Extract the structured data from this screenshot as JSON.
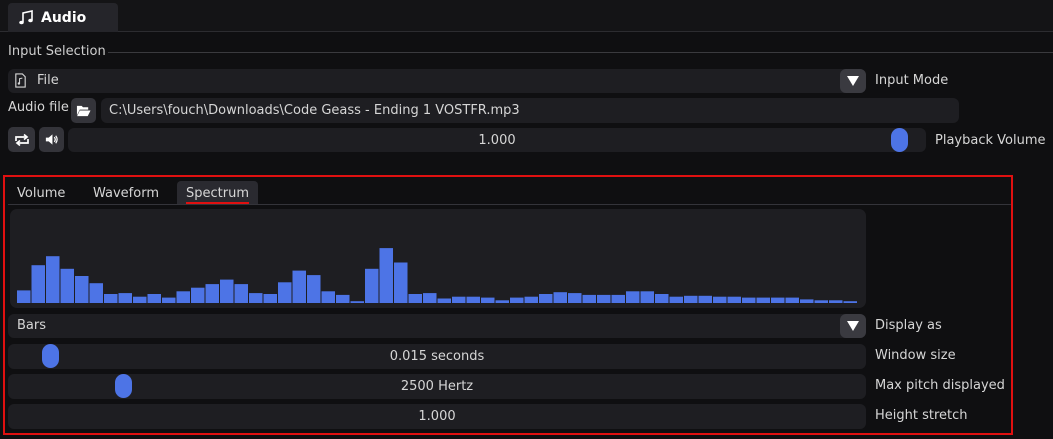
{
  "window": {
    "tab_label": "Audio",
    "tab_icon": "music-note-icon"
  },
  "input_selection": {
    "section_title": "Input Selection",
    "input_mode": {
      "value": "File",
      "icon": "file-music-icon",
      "label": "Input Mode"
    },
    "audio_file": {
      "label": "Audio file",
      "path": "C:\\Users\\fouch\\Downloads\\Code Geass - Ending 1 VOSTFR.mp3"
    },
    "playback": {
      "value_text": "1.000",
      "level": 1.0,
      "label": "Playback Volume"
    }
  },
  "subtabs": {
    "items": [
      "Volume",
      "Waveform",
      "Spectrum"
    ],
    "active": "Spectrum"
  },
  "spectrum": {
    "bar_color": "#4d74e6",
    "bars": [
      0.14,
      0.42,
      0.52,
      0.38,
      0.3,
      0.22,
      0.1,
      0.11,
      0.07,
      0.1,
      0.06,
      0.13,
      0.17,
      0.21,
      0.26,
      0.21,
      0.11,
      0.1,
      0.23,
      0.36,
      0.31,
      0.13,
      0.09,
      0.02,
      0.38,
      0.61,
      0.45,
      0.1,
      0.11,
      0.05,
      0.07,
      0.07,
      0.06,
      0.03,
      0.06,
      0.07,
      0.1,
      0.12,
      0.11,
      0.09,
      0.09,
      0.09,
      0.13,
      0.13,
      0.1,
      0.07,
      0.08,
      0.08,
      0.07,
      0.07,
      0.06,
      0.06,
      0.06,
      0.06,
      0.04,
      0.03,
      0.03,
      0.02
    ]
  },
  "controls": {
    "display_as": {
      "value": "Bars",
      "label": "Display as"
    },
    "window_size": {
      "value_text": "0.015 seconds",
      "level": 0.02,
      "label": "Window size"
    },
    "max_pitch": {
      "value_text": "2500 Hertz",
      "level": 0.11,
      "label": "Max pitch displayed"
    },
    "height_stretch": {
      "value_text": "1.000",
      "label": "Height stretch"
    }
  }
}
